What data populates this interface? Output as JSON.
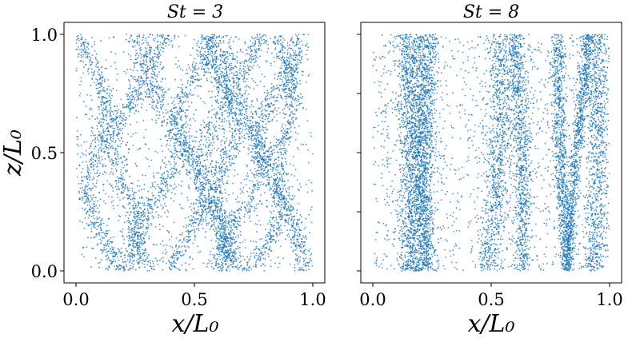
{
  "chart_data": [
    {
      "type": "scatter",
      "title": "St = 3",
      "xlabel": "x/L₀",
      "ylabel": "z/L₀",
      "xlim": [
        0.0,
        1.0
      ],
      "ylim": [
        0.0,
        1.0
      ],
      "xticks": [
        "0.0",
        "0.5",
        "1.0"
      ],
      "yticks": [
        "0.0",
        "0.5",
        "1.0"
      ],
      "grid": false,
      "color": "#1f77b4",
      "pattern": "meandering filaments",
      "clusters": [
        {
          "x": 0.22,
          "z": 0.6,
          "wander": 0.06,
          "width": 0.025,
          "tilt": 0.04
        },
        {
          "x": 0.1,
          "z": 0.3,
          "wander": 0.05,
          "width": 0.022,
          "tilt": -0.05
        },
        {
          "x": 0.36,
          "z": 0.5,
          "wander": 0.07,
          "width": 0.025,
          "tilt": 0.08
        },
        {
          "x": 0.5,
          "z": 0.75,
          "wander": 0.06,
          "width": 0.022,
          "tilt": 0.06
        },
        {
          "x": 0.58,
          "z": 0.3,
          "wander": 0.05,
          "width": 0.03,
          "tilt": 0.03
        },
        {
          "x": 0.62,
          "z": 0.6,
          "wander": 0.05,
          "width": 0.022,
          "tilt": -0.04
        },
        {
          "x": 0.72,
          "z": 0.45,
          "wander": 0.06,
          "width": 0.025,
          "tilt": 0.09
        },
        {
          "x": 0.84,
          "z": 0.65,
          "wander": 0.06,
          "width": 0.022,
          "tilt": 0.11
        },
        {
          "x": 0.9,
          "z": 0.35,
          "wander": 0.04,
          "width": 0.02,
          "tilt": -0.06
        }
      ]
    },
    {
      "type": "scatter",
      "title": "St = 8",
      "xlabel": "x/L₀",
      "ylabel": "",
      "xlim": [
        0.0,
        1.0
      ],
      "ylim": [
        0.0,
        1.0
      ],
      "xticks": [
        "0.0",
        "0.5",
        "1.0"
      ],
      "yticks": [],
      "grid": false,
      "color": "#1f77b4",
      "pattern": "vertical streaks",
      "clusters": [
        {
          "x": 0.15,
          "z": 0.5,
          "wander": 0.02,
          "width": 0.025,
          "tilt": 0.0
        },
        {
          "x": 0.2,
          "z": 0.5,
          "wander": 0.025,
          "width": 0.03,
          "tilt": 0.02
        },
        {
          "x": 0.23,
          "z": 0.5,
          "wander": 0.02,
          "width": 0.02,
          "tilt": 0.0
        },
        {
          "x": 0.52,
          "z": 0.5,
          "wander": 0.03,
          "width": 0.025,
          "tilt": 0.03
        },
        {
          "x": 0.62,
          "z": 0.5,
          "wander": 0.03,
          "width": 0.02,
          "tilt": 0.0
        },
        {
          "x": 0.8,
          "z": 0.5,
          "wander": 0.02,
          "width": 0.015,
          "tilt": -0.03
        },
        {
          "x": 0.87,
          "z": 0.6,
          "wander": 0.015,
          "width": 0.012,
          "tilt": 0.07
        },
        {
          "x": 0.94,
          "z": 0.5,
          "wander": 0.02,
          "width": 0.025,
          "tilt": 0.0
        }
      ]
    }
  ]
}
